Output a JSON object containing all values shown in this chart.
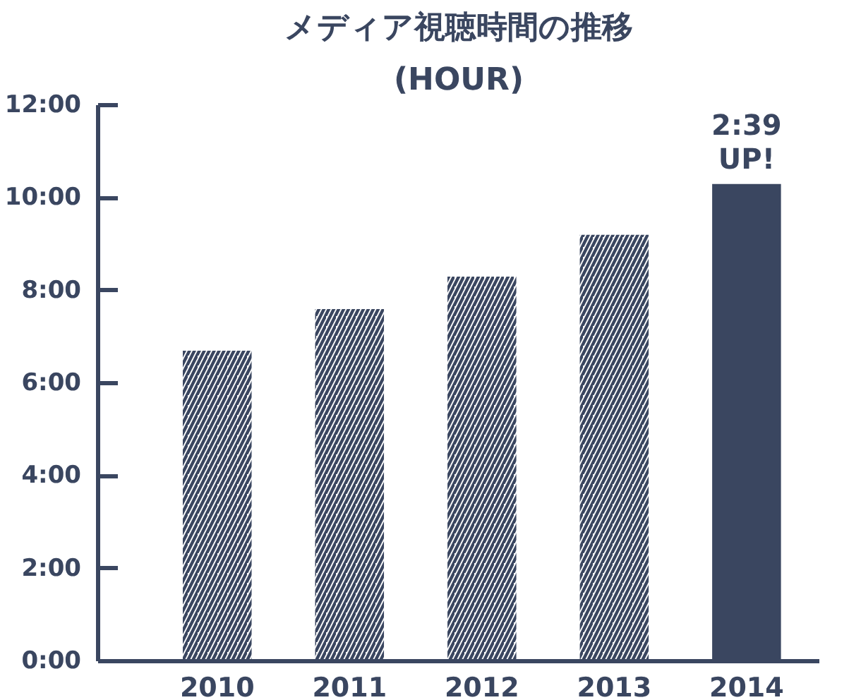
{
  "chart_data": {
    "type": "bar",
    "title": "メディア視聴時間の推移",
    "subtitle": "(HOUR)",
    "categories": [
      "2010",
      "2011",
      "2012",
      "2013",
      "2014"
    ],
    "values": [
      6.7,
      7.6,
      8.3,
      9.2,
      10.3
    ],
    "colors": [
      "#3a4660",
      "#3a4660",
      "#3a4660",
      "#3a4660",
      "#3a4660"
    ],
    "ylim": [
      0,
      12
    ],
    "yticks": [
      {
        "value": 0,
        "label": "0:00"
      },
      {
        "value": 2,
        "label": "2:00"
      },
      {
        "value": 4,
        "label": "4:00"
      },
      {
        "value": 6,
        "label": "6:00"
      },
      {
        "value": 8,
        "label": "8:00"
      },
      {
        "value": 10,
        "label": "10:00"
      },
      {
        "value": 12,
        "label": "12:00"
      }
    ],
    "annotations": [
      {
        "text": "2:39\nUP!",
        "x": "2014",
        "y": 10.3
      }
    ],
    "grid": false
  }
}
